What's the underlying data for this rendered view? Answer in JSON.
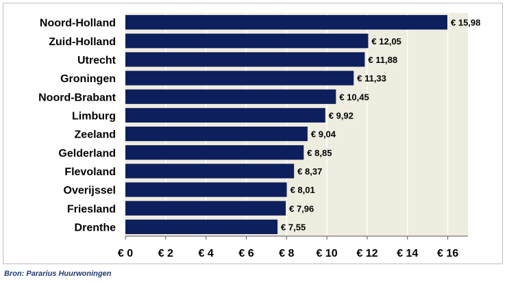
{
  "chart_data": {
    "type": "bar",
    "orientation": "horizontal",
    "categories": [
      "Noord-Holland",
      "Zuid-Holland",
      "Utrecht",
      "Groningen",
      "Noord-Brabant",
      "Limburg",
      "Zeeland",
      "Gelderland",
      "Flevoland",
      "Overijssel",
      "Friesland",
      "Drenthe"
    ],
    "values": [
      15.98,
      12.05,
      11.88,
      11.33,
      10.45,
      9.92,
      9.04,
      8.85,
      8.37,
      8.01,
      7.96,
      7.55
    ],
    "data_labels": [
      "€ 15,98",
      "€ 12,05",
      "€ 11,88",
      "€ 11,33",
      "€ 10,45",
      "€ 9,92",
      "€ 9,04",
      "€ 8,85",
      "€ 8,37",
      "€ 8,01",
      "€ 7,96",
      "€ 7,55"
    ],
    "xlim": [
      0,
      17
    ],
    "xticks": [
      0,
      2,
      4,
      6,
      8,
      10,
      12,
      14,
      16
    ],
    "xtick_labels": [
      "€ 0",
      "€ 2",
      "€ 4",
      "€ 6",
      "€ 8",
      "€ 10",
      "€ 12",
      "€ 14",
      "€ 16"
    ],
    "title": "",
    "xlabel": "",
    "ylabel": "",
    "grid": "vertical",
    "legend": "none",
    "colors": {
      "bar": "#0d1f5c",
      "plot_background": "#efece0",
      "gridline": "#ffffff",
      "axis": "#555555",
      "text": "#000000"
    }
  },
  "source_note": "Bron: Pararius Huurwoningen"
}
